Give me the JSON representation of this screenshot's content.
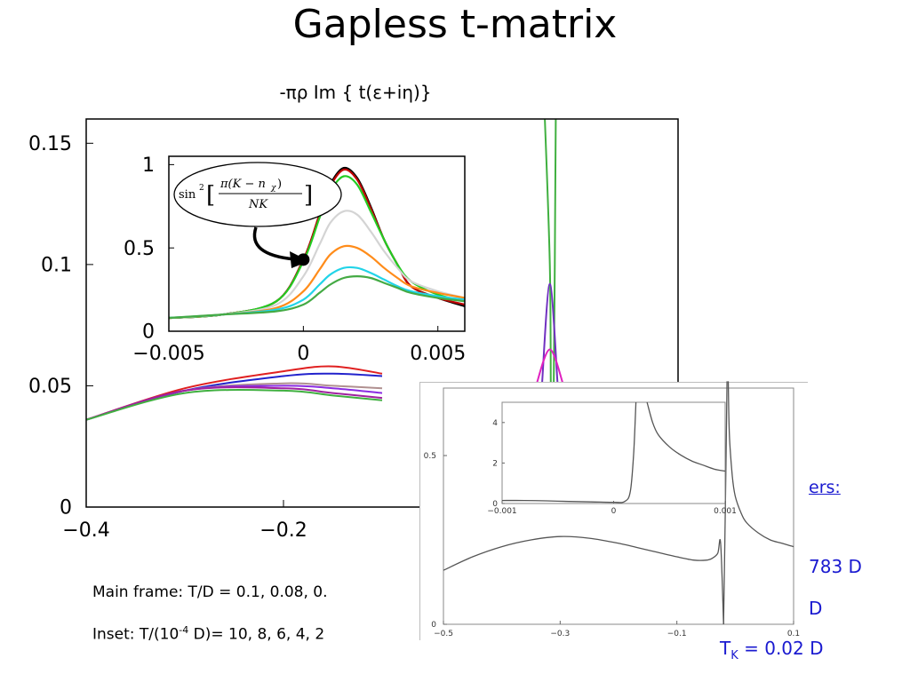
{
  "slide": {
    "title": "Gapless t-matrix",
    "ylabel": "-πρ Im { t(ε+iη)}",
    "caption_main": "Main frame: T/D = 0.1, 0.08, 0.",
    "caption_inset_prefix": "Inset:  T/(10",
    "caption_inset_exp": "-4",
    "caption_inset_suffix": " D)= 10, 8, 6, 4, 2",
    "params_header": "ers:",
    "params_line1": "783 D",
    "params_line2": "D",
    "params_line3_sym": "T",
    "params_line3_sub": "K",
    "params_line3_val": " = 0.0",
    "params_line3_tail": "2 D"
  },
  "chart_data": [
    {
      "id": "main",
      "type": "line",
      "xlim": [
        -0.4,
        0.2
      ],
      "ylim": [
        0,
        0.16
      ],
      "xticks": [
        "−0.4",
        "−0.2"
      ],
      "yticks": [
        "0",
        "0.05",
        "0.1",
        "0.15"
      ],
      "series": [
        {
          "color": "#e02020",
          "x": [
            -0.4,
            -0.3,
            -0.2,
            -0.15,
            -0.1
          ],
          "y": [
            0.036,
            0.049,
            0.056,
            0.058,
            0.055
          ]
        },
        {
          "color": "#2222cc",
          "x": [
            -0.4,
            -0.3,
            -0.2,
            -0.15,
            -0.1
          ],
          "y": [
            0.036,
            0.048,
            0.054,
            0.055,
            0.054
          ]
        },
        {
          "color": "#b09090",
          "x": [
            -0.4,
            -0.3,
            -0.2,
            -0.15,
            -0.1
          ],
          "y": [
            0.036,
            0.048,
            0.051,
            0.05,
            0.049
          ]
        },
        {
          "color": "#8a2be2",
          "x": [
            -0.4,
            -0.3,
            -0.2,
            -0.15,
            -0.1
          ],
          "y": [
            0.036,
            0.048,
            0.05,
            0.049,
            0.047
          ]
        },
        {
          "color": "#a020a0",
          "x": [
            -0.4,
            -0.3,
            -0.2,
            -0.15,
            -0.1
          ],
          "y": [
            0.036,
            0.048,
            0.049,
            0.047,
            0.045
          ]
        },
        {
          "color": "#40b040",
          "x": [
            -0.4,
            -0.3,
            -0.2,
            -0.15,
            -0.1
          ],
          "y": [
            0.036,
            0.047,
            0.048,
            0.046,
            0.044
          ]
        },
        {
          "color": "#40b040",
          "x": [
            0.065,
            0.07,
            0.071
          ],
          "y": [
            0.16,
            0.1,
            0.05
          ]
        },
        {
          "color": "#40b040",
          "x": [
            0.076,
            0.075,
            0.074
          ],
          "y": [
            0.16,
            0.1,
            0.05
          ]
        },
        {
          "color": "#7030c0",
          "x": [
            0.062,
            0.07,
            0.078
          ],
          "y": [
            0.05,
            0.092,
            0.05
          ]
        },
        {
          "color": "#e020c0",
          "x": [
            0.056,
            0.07,
            0.084
          ],
          "y": [
            0.05,
            0.065,
            0.05
          ]
        }
      ]
    },
    {
      "id": "main-inset",
      "type": "line",
      "xlim": [
        -0.005,
        0.006
      ],
      "ylim": [
        0,
        1.05
      ],
      "xticks": [
        "−0.005",
        "0",
        "0.005"
      ],
      "yticks": [
        "0",
        "0.5",
        "1"
      ],
      "annotation": "sin² [π(K − nχ) / NK]",
      "point": {
        "x": 0,
        "y": 0.43
      },
      "series": [
        {
          "color": "#000000",
          "x": [
            -0.005,
            -0.003,
            -0.001,
            0,
            0.0006,
            0.001,
            0.0015,
            0.002,
            0.0025,
            0.003,
            0.0035,
            0.004,
            0.005,
            0.006
          ],
          "y": [
            0.08,
            0.1,
            0.18,
            0.43,
            0.7,
            0.88,
            0.98,
            0.92,
            0.75,
            0.55,
            0.4,
            0.27,
            0.2,
            0.15
          ]
        },
        {
          "color": "#c00000",
          "x": [
            -0.005,
            -0.003,
            -0.001,
            0,
            0.0006,
            0.001,
            0.0015,
            0.002,
            0.0025,
            0.003,
            0.0035,
            0.004,
            0.005,
            0.006
          ],
          "y": [
            0.08,
            0.1,
            0.18,
            0.43,
            0.7,
            0.87,
            0.97,
            0.91,
            0.74,
            0.55,
            0.4,
            0.27,
            0.2,
            0.16
          ]
        },
        {
          "color": "#22cc22",
          "x": [
            -0.005,
            -0.003,
            -0.001,
            0,
            0.0006,
            0.001,
            0.0015,
            0.002,
            0.0025,
            0.003,
            0.0035,
            0.004,
            0.005,
            0.006
          ],
          "y": [
            0.08,
            0.1,
            0.18,
            0.42,
            0.68,
            0.84,
            0.93,
            0.88,
            0.72,
            0.55,
            0.4,
            0.3,
            0.22,
            0.18
          ]
        },
        {
          "color": "#d4d4d4",
          "x": [
            -0.005,
            -0.003,
            -0.001,
            0,
            0.0006,
            0.001,
            0.0015,
            0.002,
            0.0025,
            0.003,
            0.0035,
            0.004,
            0.005,
            0.006
          ],
          "y": [
            0.08,
            0.1,
            0.16,
            0.33,
            0.52,
            0.65,
            0.72,
            0.7,
            0.6,
            0.48,
            0.38,
            0.3,
            0.24,
            0.2
          ]
        },
        {
          "color": "#ff8c1a",
          "x": [
            -0.005,
            -0.003,
            -0.001,
            0,
            0.0006,
            0.001,
            0.0015,
            0.002,
            0.0025,
            0.003,
            0.0035,
            0.004,
            0.005,
            0.006
          ],
          "y": [
            0.08,
            0.1,
            0.14,
            0.24,
            0.37,
            0.46,
            0.51,
            0.5,
            0.45,
            0.38,
            0.32,
            0.27,
            0.23,
            0.2
          ]
        },
        {
          "color": "#22d4e8",
          "x": [
            -0.005,
            -0.003,
            -0.001,
            0,
            0.0006,
            0.001,
            0.0015,
            0.002,
            0.0025,
            0.003,
            0.0035,
            0.004,
            0.005,
            0.006
          ],
          "y": [
            0.08,
            0.1,
            0.13,
            0.19,
            0.28,
            0.34,
            0.38,
            0.38,
            0.35,
            0.31,
            0.27,
            0.24,
            0.21,
            0.19
          ]
        },
        {
          "color": "#44aa44",
          "x": [
            -0.005,
            -0.003,
            -0.001,
            0,
            0.0006,
            0.001,
            0.0015,
            0.002,
            0.0025,
            0.003,
            0.0035,
            0.004,
            0.005,
            0.006
          ],
          "y": [
            0.08,
            0.1,
            0.12,
            0.16,
            0.23,
            0.28,
            0.32,
            0.33,
            0.32,
            0.29,
            0.26,
            0.23,
            0.2,
            0.18
          ]
        }
      ]
    },
    {
      "id": "overlay",
      "type": "line",
      "xlim": [
        -0.5,
        0.1
      ],
      "ylim": [
        0,
        0.7
      ],
      "xticks": [
        "−0.5",
        "−0.3",
        "−0.1",
        "0.1"
      ],
      "yticks": [
        "0",
        "0.5"
      ],
      "series": [
        {
          "color": "#555555",
          "x": [
            -0.5,
            -0.45,
            -0.4,
            -0.35,
            -0.3,
            -0.25,
            -0.2,
            -0.15,
            -0.1,
            -0.07,
            -0.05,
            -0.04,
            -0.03,
            -0.025,
            -0.02
          ],
          "y": [
            0.16,
            0.2,
            0.23,
            0.25,
            0.26,
            0.255,
            0.24,
            0.22,
            0.2,
            0.19,
            0.19,
            0.195,
            0.21,
            0.24,
            0.0
          ]
        },
        {
          "color": "#555555",
          "x": [
            -0.02,
            -0.016,
            -0.014
          ],
          "y": [
            0.0,
            0.45,
            0.72
          ]
        },
        {
          "color": "#555555",
          "x": [
            -0.012,
            -0.01,
            -0.005,
            0.0,
            0.01,
            0.02,
            0.04,
            0.06,
            0.08,
            0.1
          ],
          "y": [
            0.72,
            0.56,
            0.44,
            0.38,
            0.33,
            0.3,
            0.27,
            0.25,
            0.24,
            0.23
          ]
        }
      ]
    },
    {
      "id": "overlay-inset",
      "type": "line",
      "xlim": [
        -0.001,
        0.001
      ],
      "ylim": [
        0,
        5
      ],
      "xticks": [
        "−0.001",
        "0",
        "0.001"
      ],
      "yticks": [
        "0",
        "2",
        "4"
      ],
      "series": [
        {
          "color": "#555555",
          "x": [
            -0.001,
            -0.0008,
            -0.0006,
            -0.0004,
            -0.0002,
            0.0,
            0.0001,
            0.00015,
            0.00018,
            0.0002
          ],
          "y": [
            0.15,
            0.15,
            0.13,
            0.1,
            0.08,
            0.06,
            0.1,
            0.6,
            2.5,
            5.0
          ]
        },
        {
          "color": "#555555",
          "x": [
            0.0003,
            0.00035,
            0.0004,
            0.0005,
            0.0006,
            0.0007,
            0.0008,
            0.0009,
            0.001
          ],
          "y": [
            5.0,
            4.0,
            3.4,
            2.8,
            2.4,
            2.1,
            1.9,
            1.7,
            1.6
          ]
        }
      ]
    }
  ]
}
